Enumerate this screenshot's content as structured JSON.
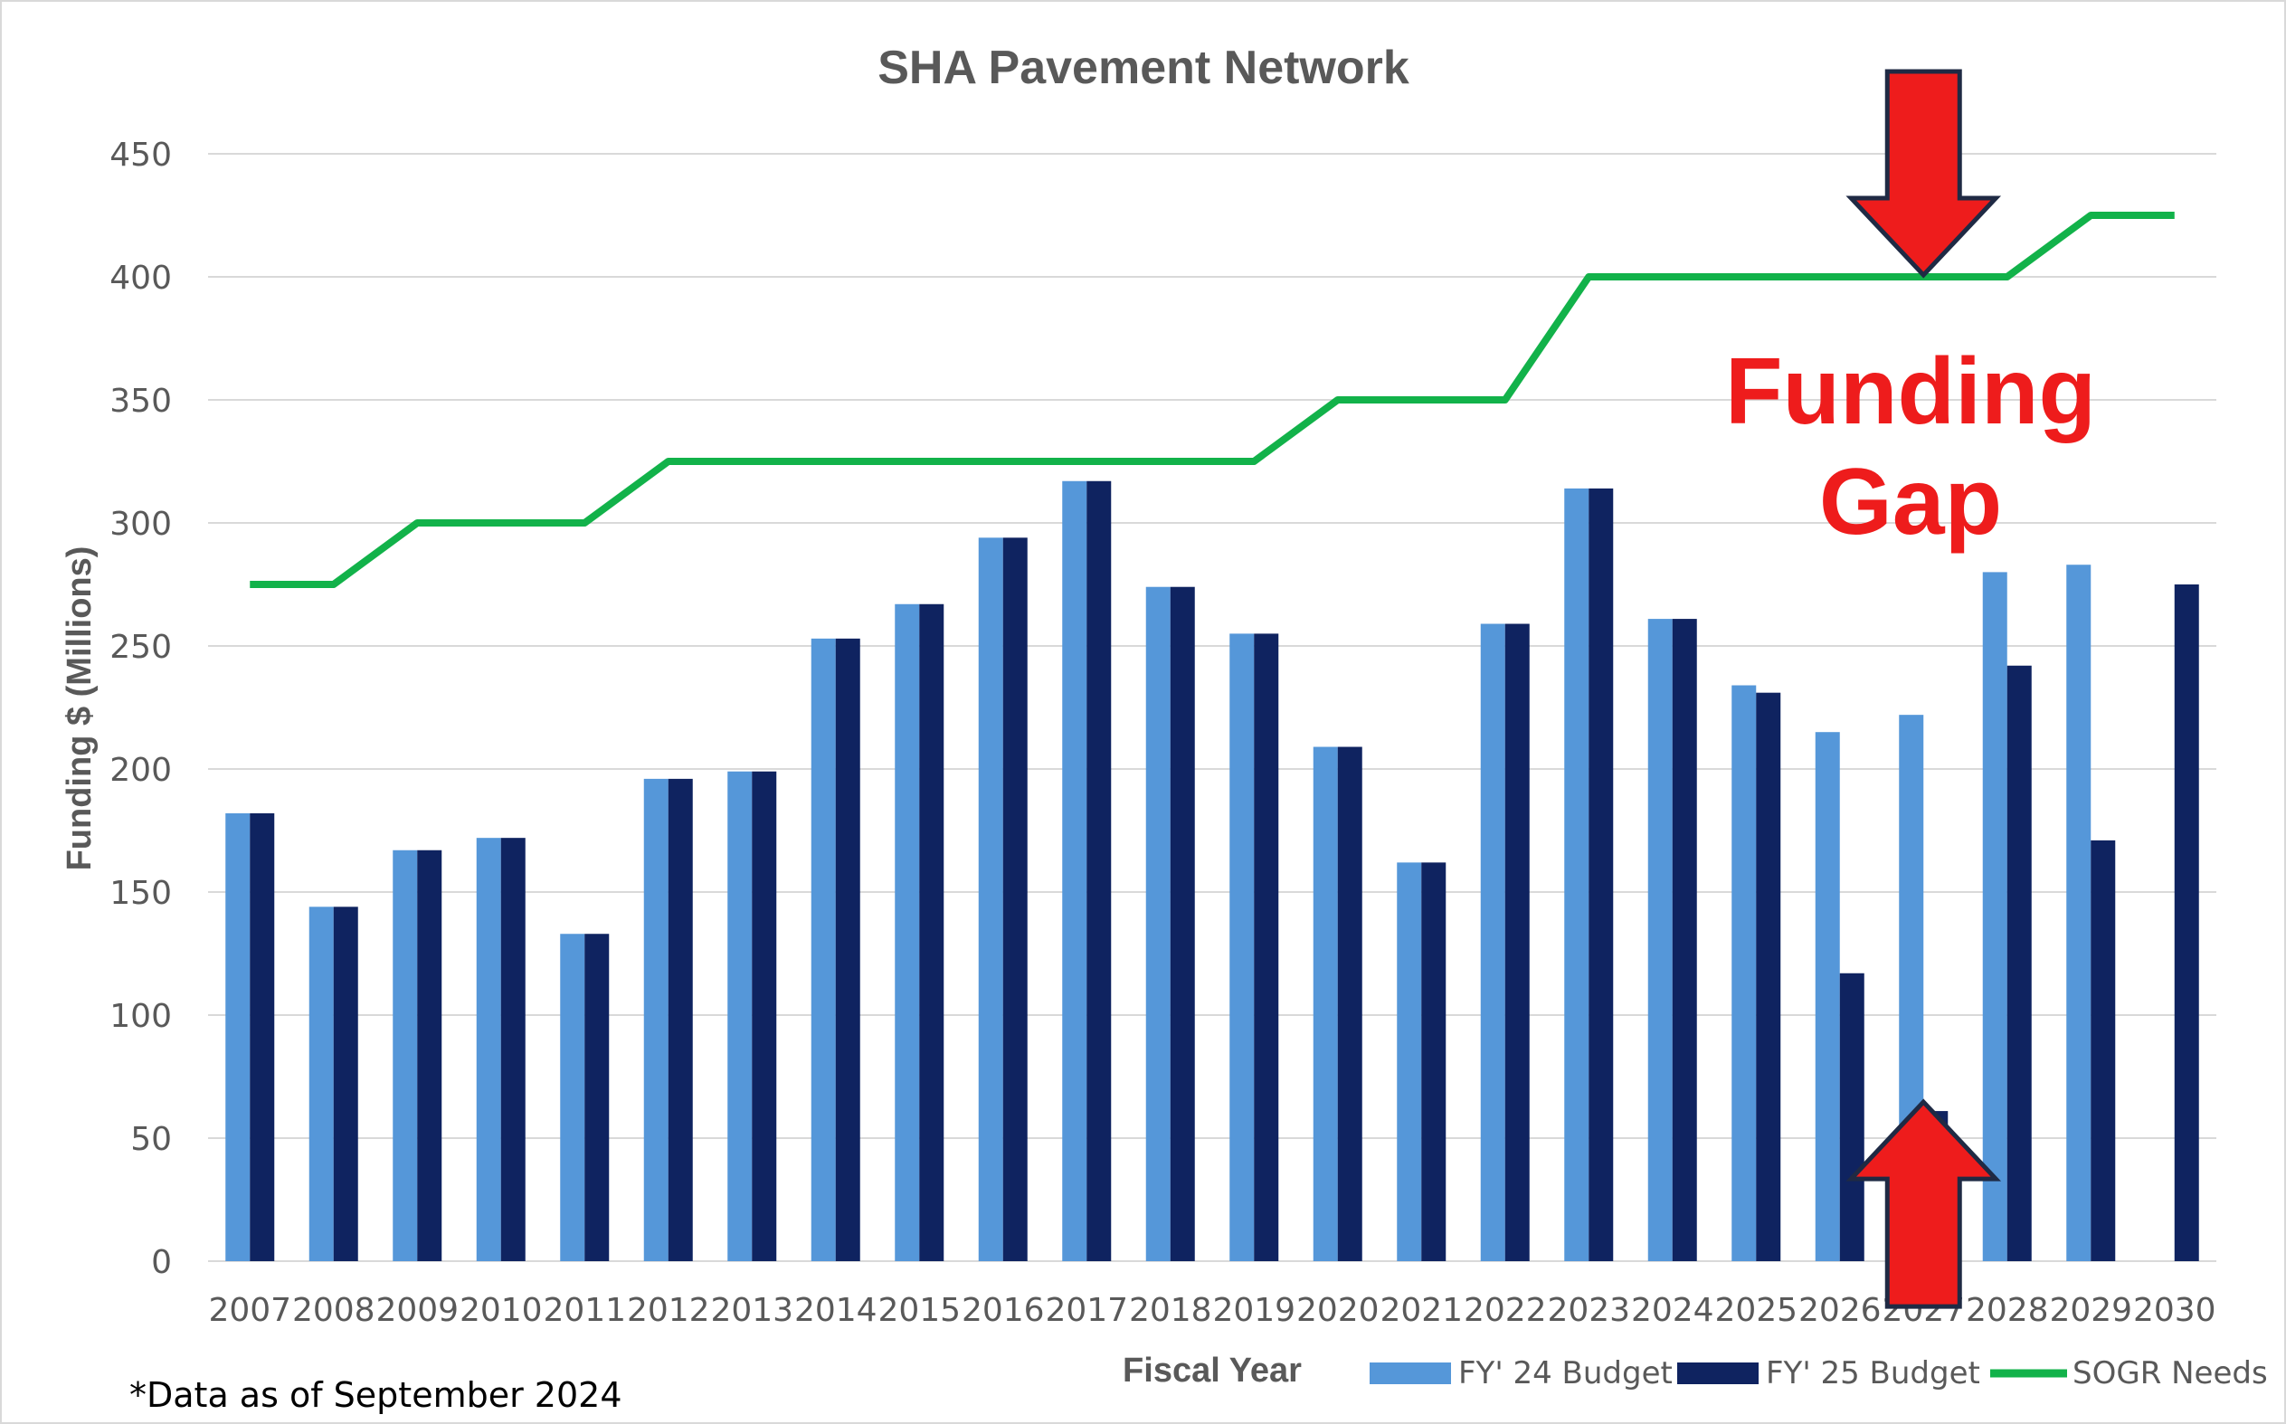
{
  "chart_data": {
    "type": "bar",
    "title": "SHA Pavement Network",
    "xlabel": "Fiscal Year",
    "ylabel": "Funding $ (Millions)",
    "ylim": [
      0,
      450
    ],
    "yticks": [
      0,
      50,
      100,
      150,
      200,
      250,
      300,
      350,
      400,
      450
    ],
    "grid": true,
    "legend_position": "bottom-right",
    "categories": [
      "2007",
      "2008",
      "2009",
      "2010",
      "2011",
      "2012",
      "2013",
      "2014",
      "2015",
      "2016",
      "2017",
      "2018",
      "2019",
      "2020",
      "2021",
      "2022",
      "2023",
      "2024",
      "2025",
      "2026",
      "2027",
      "2028",
      "2029",
      "2030"
    ],
    "series": [
      {
        "name": "FY' 24 Budget",
        "type": "bar",
        "color": "#5597d9",
        "values": [
          182,
          144,
          167,
          172,
          133,
          196,
          199,
          253,
          267,
          294,
          317,
          274,
          255,
          209,
          162,
          259,
          314,
          261,
          234,
          215,
          222,
          280,
          283,
          null
        ]
      },
      {
        "name": "FY' 25 Budget",
        "type": "bar",
        "color": "#0f2360",
        "values": [
          182,
          144,
          167,
          172,
          133,
          196,
          199,
          253,
          267,
          294,
          317,
          274,
          255,
          209,
          162,
          259,
          314,
          261,
          231,
          117,
          61,
          242,
          171,
          275
        ]
      },
      {
        "name": "SOGR Needs",
        "type": "line",
        "color": "#12b24a",
        "values": [
          275,
          275,
          300,
          300,
          300,
          325,
          325,
          325,
          325,
          325,
          325,
          325,
          325,
          350,
          350,
          350,
          400,
          400,
          400,
          400,
          400,
          400,
          425,
          425
        ]
      }
    ],
    "annotations": [
      {
        "text": "Funding Gap",
        "color": "#ee1c1c"
      },
      {
        "text": "*Data as of September 2024"
      }
    ],
    "annotation_arrows": [
      {
        "direction": "down",
        "color": "#ee1c1c",
        "outline": "#1f2a44",
        "at_category": "2027",
        "value": 400
      },
      {
        "direction": "up",
        "color": "#ee1c1c",
        "outline": "#1f2a44",
        "at_category": "2027",
        "value": 61
      }
    ]
  }
}
